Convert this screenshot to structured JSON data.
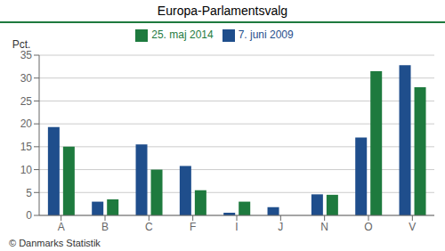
{
  "chart_data": {
    "type": "bar",
    "title": "Europa-Parlamentsvalg",
    "categories": [
      "A",
      "B",
      "C",
      "F",
      "I",
      "J",
      "N",
      "O",
      "V"
    ],
    "series": [
      {
        "name": "7. juni 2009",
        "color": "#1f4e8c",
        "values": [
          19.3,
          3.0,
          15.5,
          10.8,
          0.6,
          1.8,
          4.6,
          17.0,
          32.8
        ]
      },
      {
        "name": "25. maj 2014",
        "color": "#1e7a3e",
        "values": [
          15.0,
          3.5,
          10.0,
          5.5,
          3.0,
          0.0,
          4.5,
          31.5,
          28.0
        ]
      }
    ],
    "ylabel": "Pct.",
    "ylim": [
      0,
      35
    ],
    "yticks": [
      0,
      5,
      10,
      15,
      20,
      25,
      30,
      35
    ],
    "grid": true,
    "legend": "top",
    "annotations": [
      "© Danmarks Statistik"
    ]
  }
}
